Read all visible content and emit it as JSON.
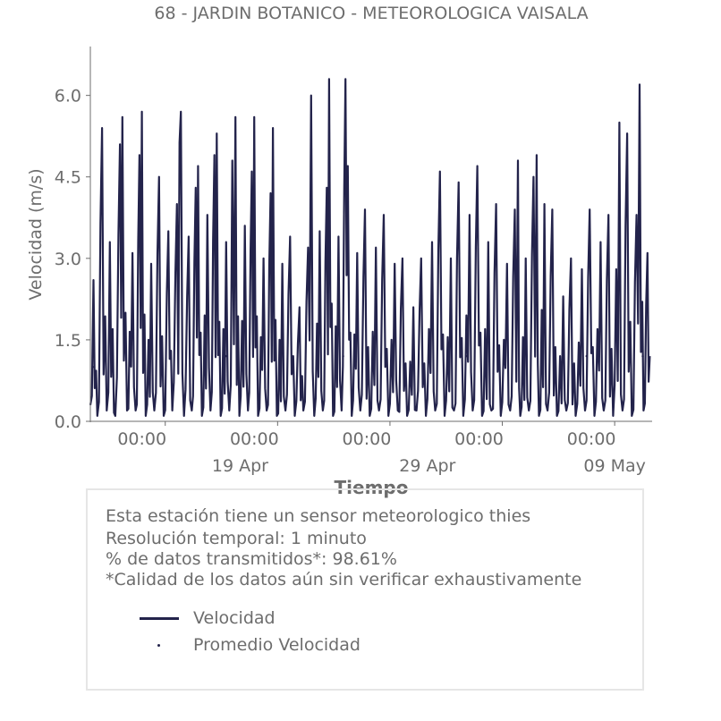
{
  "colors": {
    "series": "#23234b",
    "axis": "#6d6d6d",
    "text": "#6d6d6d",
    "box_border": "#e6e6e6"
  },
  "chart_data": {
    "type": "line",
    "title": "68 - JARDIN BOTANICO - METEOROLOGICA VAISALA",
    "xlabel": "Tiempo",
    "ylabel": "Velocidad (m/s)",
    "ylim": [
      0,
      6.9
    ],
    "xlim": [
      "2024-04-11T00:00",
      "2024-05-11T00:00"
    ],
    "yticks": [
      "0.0",
      "1.5",
      "3.0",
      "4.5",
      "6.0"
    ],
    "xticks_minor": [
      "00:00",
      "00:00",
      "00:00",
      "00:00",
      "00:00"
    ],
    "xticks_major": [
      "19 Apr",
      "29 Apr",
      "09 May"
    ],
    "legend_position": "below plot",
    "grid": false,
    "series": [
      {
        "name": "Velocidad",
        "style": "line",
        "peaks": [
          {
            "t": "2024-04-11T00:00",
            "v": 0.3
          },
          {
            "t": "2024-04-11T04:00",
            "v": 2.6
          },
          {
            "t": "2024-04-11T09:00",
            "v": 0.1
          },
          {
            "t": "2024-04-11T15:00",
            "v": 5.4
          },
          {
            "t": "2024-04-11T21:00",
            "v": 0.2
          },
          {
            "t": "2024-04-12T01:00",
            "v": 3.3
          },
          {
            "t": "2024-04-12T08:00",
            "v": 0.1
          },
          {
            "t": "2024-04-12T14:00",
            "v": 5.1
          },
          {
            "t": "2024-04-12T17:00",
            "v": 5.6
          },
          {
            "t": "2024-04-12T23:00",
            "v": 0.2
          },
          {
            "t": "2024-04-13T06:00",
            "v": 3.1
          },
          {
            "t": "2024-04-13T10:00",
            "v": 0.2
          },
          {
            "t": "2024-04-13T15:00",
            "v": 4.9
          },
          {
            "t": "2024-04-13T18:00",
            "v": 5.7
          },
          {
            "t": "2024-04-13T23:00",
            "v": 0.1
          },
          {
            "t": "2024-04-14T06:00",
            "v": 2.9
          },
          {
            "t": "2024-04-14T10:00",
            "v": 0.2
          },
          {
            "t": "2024-04-14T16:00",
            "v": 4.5
          },
          {
            "t": "2024-04-14T22:00",
            "v": 0.1
          },
          {
            "t": "2024-04-15T04:00",
            "v": 3.5
          },
          {
            "t": "2024-04-15T09:00",
            "v": 0.2
          },
          {
            "t": "2024-04-15T15:00",
            "v": 4.0
          },
          {
            "t": "2024-04-15T20:00",
            "v": 5.7
          },
          {
            "t": "2024-04-16T00:00",
            "v": 0.1
          },
          {
            "t": "2024-04-16T06:00",
            "v": 3.4
          },
          {
            "t": "2024-04-16T10:00",
            "v": 0.2
          },
          {
            "t": "2024-04-16T15:00",
            "v": 4.3
          },
          {
            "t": "2024-04-16T18:00",
            "v": 4.7
          },
          {
            "t": "2024-04-16T23:00",
            "v": 0.1
          },
          {
            "t": "2024-04-17T06:00",
            "v": 3.8
          },
          {
            "t": "2024-04-17T10:00",
            "v": 0.2
          },
          {
            "t": "2024-04-17T15:00",
            "v": 4.9
          },
          {
            "t": "2024-04-17T18:00",
            "v": 5.3
          },
          {
            "t": "2024-04-17T23:00",
            "v": 0.1
          },
          {
            "t": "2024-04-18T06:00",
            "v": 3.3
          },
          {
            "t": "2024-04-18T10:00",
            "v": 0.2
          },
          {
            "t": "2024-04-18T14:00",
            "v": 4.8
          },
          {
            "t": "2024-04-18T18:00",
            "v": 5.6
          },
          {
            "t": "2024-04-18T23:00",
            "v": 0.1
          },
          {
            "t": "2024-04-19T06:00",
            "v": 3.6
          },
          {
            "t": "2024-04-19T10:00",
            "v": 0.2
          },
          {
            "t": "2024-04-19T15:00",
            "v": 4.6
          },
          {
            "t": "2024-04-19T18:00",
            "v": 5.6
          },
          {
            "t": "2024-04-19T23:00",
            "v": 0.1
          },
          {
            "t": "2024-04-20T06:00",
            "v": 3.0
          },
          {
            "t": "2024-04-20T10:00",
            "v": 0.2
          },
          {
            "t": "2024-04-20T15:00",
            "v": 4.2
          },
          {
            "t": "2024-04-20T18:00",
            "v": 5.4
          },
          {
            "t": "2024-04-20T23:00",
            "v": 0.1
          },
          {
            "t": "2024-04-21T06:00",
            "v": 2.9
          },
          {
            "t": "2024-04-21T10:00",
            "v": 0.2
          },
          {
            "t": "2024-04-21T16:00",
            "v": 3.4
          },
          {
            "t": "2024-04-21T22:00",
            "v": 0.1
          },
          {
            "t": "2024-04-22T04:00",
            "v": 2.1
          },
          {
            "t": "2024-04-22T09:00",
            "v": 0.2
          },
          {
            "t": "2024-04-22T15:00",
            "v": 3.2
          },
          {
            "t": "2024-04-22T19:00",
            "v": 6.0
          },
          {
            "t": "2024-04-22T23:00",
            "v": 0.1
          },
          {
            "t": "2024-04-23T06:00",
            "v": 3.5
          },
          {
            "t": "2024-04-23T10:00",
            "v": 0.2
          },
          {
            "t": "2024-04-23T15:00",
            "v": 4.3
          },
          {
            "t": "2024-04-23T18:00",
            "v": 6.3
          },
          {
            "t": "2024-04-23T23:00",
            "v": 0.1
          },
          {
            "t": "2024-04-24T06:00",
            "v": 3.4
          },
          {
            "t": "2024-04-24T10:00",
            "v": 0.2
          },
          {
            "t": "2024-04-24T15:00",
            "v": 6.3
          },
          {
            "t": "2024-04-24T18:00",
            "v": 4.7
          },
          {
            "t": "2024-04-24T23:00",
            "v": 0.1
          },
          {
            "t": "2024-04-25T06:00",
            "v": 3.1
          },
          {
            "t": "2024-04-25T10:00",
            "v": 0.2
          },
          {
            "t": "2024-04-25T16:00",
            "v": 3.9
          },
          {
            "t": "2024-04-25T22:00",
            "v": 0.1
          },
          {
            "t": "2024-04-26T06:00",
            "v": 3.2
          },
          {
            "t": "2024-04-26T10:00",
            "v": 0.2
          },
          {
            "t": "2024-04-26T16:00",
            "v": 3.8
          },
          {
            "t": "2024-04-26T22:00",
            "v": 0.1
          },
          {
            "t": "2024-04-27T06:00",
            "v": 2.9
          },
          {
            "t": "2024-04-27T10:00",
            "v": 0.2
          },
          {
            "t": "2024-04-27T16:00",
            "v": 3.0
          },
          {
            "t": "2024-04-27T22:00",
            "v": 0.1
          },
          {
            "t": "2024-04-28T06:00",
            "v": 2.1
          },
          {
            "t": "2024-04-28T10:00",
            "v": 0.2
          },
          {
            "t": "2024-04-28T16:00",
            "v": 3.0
          },
          {
            "t": "2024-04-28T22:00",
            "v": 0.1
          },
          {
            "t": "2024-04-29T06:00",
            "v": 3.3
          },
          {
            "t": "2024-04-29T10:00",
            "v": 0.2
          },
          {
            "t": "2024-04-29T16:00",
            "v": 4.6
          },
          {
            "t": "2024-04-29T22:00",
            "v": 0.1
          },
          {
            "t": "2024-04-30T06:00",
            "v": 3.0
          },
          {
            "t": "2024-04-30T10:00",
            "v": 0.2
          },
          {
            "t": "2024-04-30T16:00",
            "v": 4.4
          },
          {
            "t": "2024-04-30T22:00",
            "v": 0.1
          },
          {
            "t": "2024-05-01T06:00",
            "v": 3.8
          },
          {
            "t": "2024-05-01T10:00",
            "v": 0.2
          },
          {
            "t": "2024-05-01T16:00",
            "v": 4.7
          },
          {
            "t": "2024-05-01T22:00",
            "v": 0.1
          },
          {
            "t": "2024-05-02T06:00",
            "v": 3.3
          },
          {
            "t": "2024-05-02T10:00",
            "v": 0.2
          },
          {
            "t": "2024-05-02T16:00",
            "v": 4.0
          },
          {
            "t": "2024-05-02T22:00",
            "v": 0.1
          },
          {
            "t": "2024-05-03T06:00",
            "v": 2.9
          },
          {
            "t": "2024-05-03T10:00",
            "v": 0.2
          },
          {
            "t": "2024-05-03T16:00",
            "v": 3.9
          },
          {
            "t": "2024-05-03T20:00",
            "v": 4.8
          },
          {
            "t": "2024-05-03T23:00",
            "v": 0.1
          },
          {
            "t": "2024-05-04T06:00",
            "v": 3.0
          },
          {
            "t": "2024-05-04T10:00",
            "v": 0.2
          },
          {
            "t": "2024-05-04T16:00",
            "v": 4.5
          },
          {
            "t": "2024-05-04T20:00",
            "v": 4.9
          },
          {
            "t": "2024-05-04T23:00",
            "v": 0.1
          },
          {
            "t": "2024-05-05T06:00",
            "v": 4.0
          },
          {
            "t": "2024-05-05T10:00",
            "v": 0.2
          },
          {
            "t": "2024-05-05T16:00",
            "v": 3.9
          },
          {
            "t": "2024-05-05T22:00",
            "v": 0.1
          },
          {
            "t": "2024-05-06T06:00",
            "v": 2.3
          },
          {
            "t": "2024-05-06T10:00",
            "v": 0.2
          },
          {
            "t": "2024-05-06T16:00",
            "v": 3.0
          },
          {
            "t": "2024-05-06T22:00",
            "v": 0.1
          },
          {
            "t": "2024-05-07T06:00",
            "v": 2.8
          },
          {
            "t": "2024-05-07T10:00",
            "v": 0.2
          },
          {
            "t": "2024-05-07T16:00",
            "v": 3.9
          },
          {
            "t": "2024-05-07T22:00",
            "v": 0.1
          },
          {
            "t": "2024-05-08T06:00",
            "v": 3.3
          },
          {
            "t": "2024-05-08T10:00",
            "v": 0.2
          },
          {
            "t": "2024-05-08T16:00",
            "v": 3.8
          },
          {
            "t": "2024-05-08T22:00",
            "v": 0.1
          },
          {
            "t": "2024-05-09T06:00",
            "v": 5.5
          },
          {
            "t": "2024-05-09T10:00",
            "v": 0.2
          },
          {
            "t": "2024-05-09T16:00",
            "v": 5.3
          },
          {
            "t": "2024-05-09T22:00",
            "v": 0.1
          },
          {
            "t": "2024-05-10T04:00",
            "v": 3.8
          },
          {
            "t": "2024-05-10T08:00",
            "v": 6.2
          },
          {
            "t": "2024-05-10T13:00",
            "v": 0.2
          },
          {
            "t": "2024-05-10T18:00",
            "v": 3.1
          },
          {
            "t": "2024-05-10T21:00",
            "v": 1.2
          }
        ]
      },
      {
        "name": "Promedio Velocidad",
        "style": "dots",
        "points": [
          {
            "t": "2024-04-11T03:00",
            "v": 1.0
          },
          {
            "t": "2024-04-18T06:00",
            "v": 1.2
          },
          {
            "t": "2024-04-24T12:00",
            "v": 1.2
          },
          {
            "t": "2024-05-01T02:00",
            "v": 1.2
          },
          {
            "t": "2024-05-07T12:00",
            "v": 1.2
          },
          {
            "t": "2024-05-10T12:00",
            "v": 1.2
          }
        ]
      }
    ]
  },
  "info": {
    "line1": "Esta estación tiene un sensor meteorologico thies",
    "line2": "Resolución temporal: 1 minuto",
    "line3": "% de datos transmitidos*: 98.61%",
    "line4": "*Calidad de los datos aún sin verificar exhaustivamente"
  },
  "legend": {
    "items": [
      "Velocidad",
      "Promedio Velocidad"
    ]
  }
}
